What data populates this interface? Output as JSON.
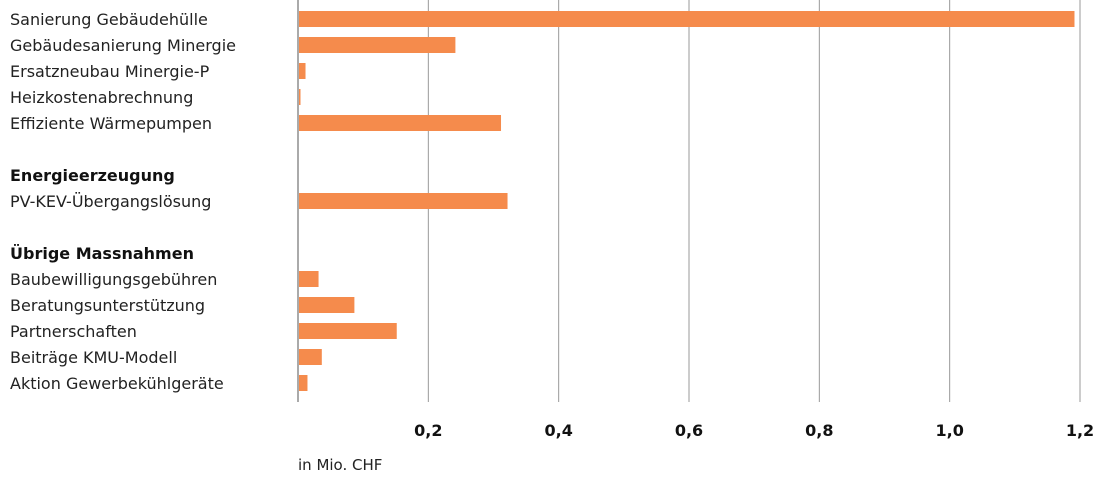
{
  "chart_data": {
    "type": "bar",
    "orientation": "horizontal",
    "xlabel": "in Mio. CHF",
    "xlim": [
      0,
      1.2
    ],
    "x_ticks": [
      0.2,
      0.4,
      0.6,
      0.8,
      1.0,
      1.2
    ],
    "x_tick_labels": [
      "0,2",
      "0,4",
      "0,6",
      "0,8",
      "1,0",
      "1,2"
    ],
    "grid": true,
    "bar_color": "#F58B4C",
    "rows": [
      {
        "kind": "category",
        "label": "Sanierung Gebäudehülle",
        "value": 1.19
      },
      {
        "kind": "category",
        "label": "Gebäudesanierung Minergie",
        "value": 0.24
      },
      {
        "kind": "category",
        "label": "Ersatzneubau Minergie-P",
        "value": 0.01
      },
      {
        "kind": "category",
        "label": "Heizkostenabrechnung",
        "value": 0.002
      },
      {
        "kind": "category",
        "label": "Effiziente Wärmepumpen",
        "value": 0.31
      },
      {
        "kind": "spacer"
      },
      {
        "kind": "group",
        "label": "Energieerzeugung"
      },
      {
        "kind": "category",
        "label": "PV-KEV-Übergangslösung",
        "value": 0.32
      },
      {
        "kind": "spacer"
      },
      {
        "kind": "group",
        "label": "Übrige Massnahmen"
      },
      {
        "kind": "category",
        "label": "Baubewilligungsgebühren",
        "value": 0.03
      },
      {
        "kind": "category",
        "label": "Beratungsunterstützung",
        "value": 0.085
      },
      {
        "kind": "category",
        "label": "Partnerschaften",
        "value": 0.15
      },
      {
        "kind": "category",
        "label": "Beiträge KMU-Modell",
        "value": 0.035
      },
      {
        "kind": "category",
        "label": "Aktion Gewerbekühlgeräte",
        "value": 0.013
      }
    ]
  }
}
